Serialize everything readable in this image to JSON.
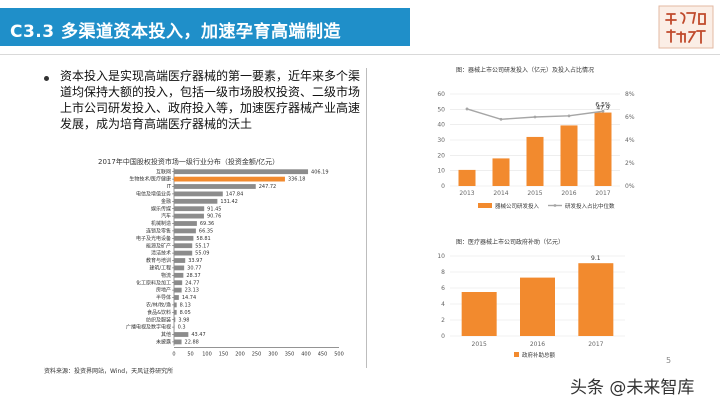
{
  "header": {
    "title": "C3.3  多渠道资本投入，加速孕育高端制造",
    "logo_text": "深度研究"
  },
  "bullet": "资本投入是实现高端医疗器械的第一要素，近年来多个渠道均保持大额的投入，包括一级市场股权投资、二级市场上市公司研发投入、政府投入等，加速医疗器械产业高速发展，成为培育高端医疗器械的沃土",
  "source": "资料来源：投资界网站，Wind，天风证券研究所",
  "watermark": "头条 @未来智库",
  "page_number": "5",
  "colors": {
    "header_bg": "#1f8fc9",
    "bar_gray": "#8c8c8c",
    "bar_orange": "#f28a2e",
    "line_gray": "#a6a6a6"
  },
  "chart_data": [
    {
      "type": "bar",
      "orientation": "horizontal",
      "title": "2017年中国股权投资市场一级行业分布（投资金额/亿元）",
      "categories": [
        "互联网",
        "生物技术/医疗健康",
        "IT",
        "电信及增值业务",
        "金融",
        "娱乐传媒",
        "汽车",
        "机械制造",
        "连锁及零售",
        "电子及光电设备",
        "能源及矿产",
        "清洁技术",
        "教育与培训",
        "建筑/工程",
        "物流",
        "化工原料及加工",
        "房地产",
        "半导体",
        "农/林/牧/渔",
        "食品&饮料",
        "纺织及服装",
        "广播电视及数字电视",
        "其他",
        "未披露"
      ],
      "values": [
        406.19,
        336.18,
        247.72,
        147.84,
        131.42,
        91.45,
        90.76,
        69.36,
        66.35,
        58.81,
        55.17,
        55.09,
        33.97,
        30.77,
        28.37,
        24.77,
        23.13,
        14.74,
        8.13,
        8.05,
        3.98,
        0.3,
        43.47,
        22.88
      ],
      "highlight_index": 1,
      "value_labels": [
        "406.19",
        "336.18",
        "247.72",
        "147.84",
        "131.42",
        "91.45",
        "90.76",
        "69.36",
        "66.35",
        "58.81",
        "55.17",
        "55.09",
        "33.97",
        "30.77",
        "28.37",
        "24.77",
        "23.13",
        "14.74",
        "8.13",
        "8.05",
        "3.98",
        "0.3",
        "43.47",
        "22.88"
      ],
      "xticks": [
        "0",
        "50",
        "100",
        "150",
        "200",
        "250",
        "300",
        "350",
        "400",
        "450",
        "500"
      ],
      "xlim": [
        0,
        500
      ],
      "grid": false
    },
    {
      "type": "bar",
      "title": "图：器械上市公司研发投入（亿元）及投入占比情况",
      "categories": [
        "2013",
        "2014",
        "2015",
        "2016",
        "2017"
      ],
      "series": [
        {
          "name": "器械公司研发投入",
          "type": "bar",
          "axis": "left",
          "values": [
            10.5,
            18,
            32,
            39.5,
            47.9
          ]
        },
        {
          "name": "研发投入占比中位数",
          "type": "line",
          "axis": "right",
          "values": [
            6.7,
            5.8,
            6.0,
            6.1,
            6.5
          ]
        }
      ],
      "labels": {
        "bar_last": "47.9",
        "line_last": "6.5%"
      },
      "yticks_left": [
        "0",
        "10",
        "20",
        "30",
        "40",
        "50",
        "60"
      ],
      "yticks_right": [
        "0%",
        "2%",
        "4%",
        "6%",
        "8%"
      ],
      "ylim_left": [
        0,
        60
      ],
      "ylim_right": [
        0,
        8
      ],
      "legend_placement": "bottom",
      "grid": true
    },
    {
      "type": "bar",
      "title": "图：医疗器械上市公司政府补助（亿元）",
      "categories": [
        "2015",
        "2016",
        "2017"
      ],
      "series": [
        {
          "name": "政府补助总额",
          "values": [
            5.5,
            7.3,
            9.1
          ]
        }
      ],
      "labels": {
        "bar_last": "9.1"
      },
      "yticks": [
        "0",
        "2",
        "4",
        "6",
        "8",
        "10"
      ],
      "ylim": [
        0,
        10
      ],
      "legend_placement": "bottom",
      "grid": true
    }
  ]
}
